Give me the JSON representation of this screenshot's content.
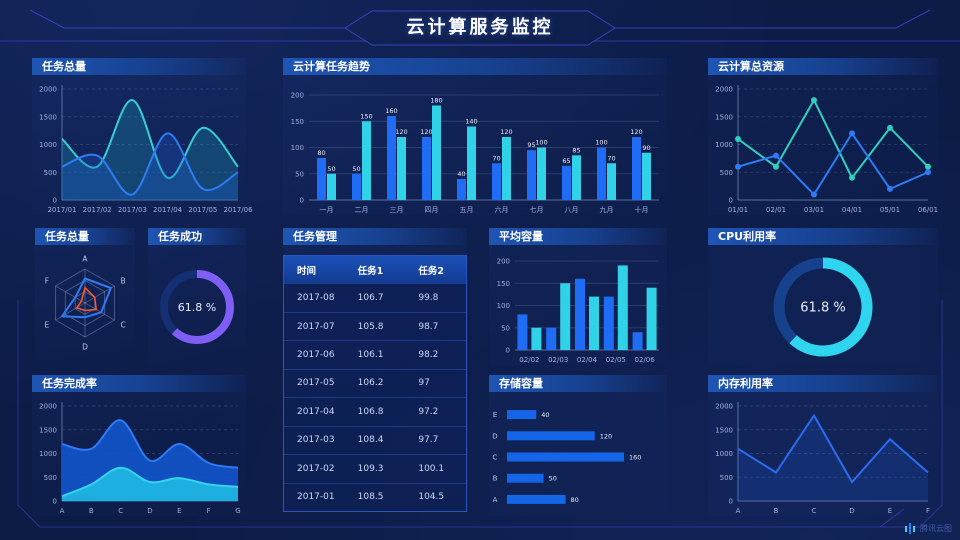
{
  "page_title": "云计算服务监控",
  "watermark": "腾讯云图",
  "colors": {
    "background": "#0d1c47",
    "accent_blue": "#1f6cf5",
    "accent_cyan": "#30d2e8",
    "accent_purple": "#7e5ef5",
    "accent_orange": "#f25a33"
  },
  "chart_data": [
    {
      "id": "task-total-trend",
      "type": "area",
      "title": "任务总量",
      "x": [
        "2017/01",
        "2017/02",
        "2017/03",
        "2017/04",
        "2017/05",
        "2017/06"
      ],
      "ylim": [
        0,
        2000
      ],
      "yticks": [
        0,
        500,
        1000,
        1500,
        2000
      ],
      "series": [
        {
          "name": "series1",
          "color": "#35cfd4",
          "fill": "#18a0c0",
          "fill_opacity": 0.28,
          "values": [
            1100,
            600,
            1800,
            400,
            1300,
            600
          ]
        },
        {
          "name": "series2",
          "color": "#2e7bf5",
          "fill": "#1d5ad0",
          "fill_opacity": 0.3,
          "values": [
            600,
            800,
            100,
            1200,
            200,
            500
          ]
        }
      ]
    },
    {
      "id": "cloud-task-trend",
      "type": "bar",
      "title": "云计算任务趋势",
      "categories": [
        "一月",
        "二月",
        "三月",
        "四月",
        "五月",
        "六月",
        "七月",
        "八月",
        "九月",
        "十月"
      ],
      "ylim": [
        0,
        200
      ],
      "yticks": [
        0,
        50,
        100,
        150,
        200
      ],
      "series": [
        {
          "name": "series1",
          "color": "#1f6cf5",
          "values": [
            80,
            50,
            160,
            120,
            40,
            70,
            95,
            65,
            100,
            120
          ]
        },
        {
          "name": "series2",
          "color": "#30d2e8",
          "values": [
            50,
            150,
            120,
            180,
            140,
            120,
            100,
            85,
            70,
            90
          ]
        }
      ]
    },
    {
      "id": "cloud-total-resource",
      "type": "line",
      "title": "云计算总资源",
      "x": [
        "01/01",
        "02/01",
        "03/01",
        "04/01",
        "05/01",
        "06/01"
      ],
      "ylim": [
        0,
        2000
      ],
      "yticks": [
        0,
        500,
        1000,
        1500,
        2000
      ],
      "series": [
        {
          "name": "series1",
          "color": "#2fd0c0",
          "values": [
            1100,
            600,
            1800,
            400,
            1300,
            600
          ]
        },
        {
          "name": "series2",
          "color": "#2e7bf5",
          "values": [
            600,
            800,
            100,
            1200,
            200,
            500
          ]
        }
      ]
    },
    {
      "id": "task-total-radar",
      "type": "radar",
      "title": "任务总量",
      "axes": [
        "A",
        "B",
        "C",
        "D",
        "E",
        "F"
      ],
      "max": 100,
      "series": [
        {
          "name": "blue",
          "color": "#2e7bf5",
          "values": [
            72,
            88,
            55,
            42,
            78,
            33
          ]
        },
        {
          "name": "orange",
          "color": "#f25a33",
          "values": [
            45,
            33,
            38,
            22,
            28,
            12
          ]
        }
      ]
    },
    {
      "id": "task-success",
      "type": "donut",
      "title": "任务成功",
      "value": 61.8,
      "label": "61.8 %",
      "color": "#7e5ef5",
      "track": "#152f74"
    },
    {
      "id": "task-management",
      "type": "table",
      "title": "任务管理",
      "columns": [
        "时间",
        "任务1",
        "任务2"
      ],
      "rows": [
        [
          "2017-08",
          "106.7",
          "99.8"
        ],
        [
          "2017-07",
          "105.8",
          "98.7"
        ],
        [
          "2017-06",
          "106.1",
          "98.2"
        ],
        [
          "2017-05",
          "106.2",
          "97"
        ],
        [
          "2017-04",
          "106.8",
          "97.2"
        ],
        [
          "2017-03",
          "108.4",
          "97.7"
        ],
        [
          "2017-02",
          "109.3",
          "100.1"
        ],
        [
          "2017-01",
          "108.5",
          "104.5"
        ]
      ]
    },
    {
      "id": "average-capacity",
      "type": "bar",
      "title": "平均容量",
      "categories": [
        "02/02",
        "02/03",
        "02/04",
        "02/05",
        "02/06"
      ],
      "ylim": [
        0,
        200
      ],
      "yticks": [
        0,
        50,
        100,
        150,
        200
      ],
      "series": [
        {
          "name": "series1",
          "color": "#1f6cf5",
          "values": [
            80,
            50,
            160,
            120,
            40
          ]
        },
        {
          "name": "series2",
          "color": "#30d2e8",
          "values": [
            50,
            150,
            120,
            190,
            140
          ]
        }
      ]
    },
    {
      "id": "cpu-utilization",
      "type": "donut",
      "title": "CPU利用率",
      "value": 61.8,
      "label": "61.8 %",
      "color": "#2fd4ee",
      "track": "#16418c"
    },
    {
      "id": "task-completion-rate",
      "type": "area",
      "title": "任务完成率",
      "x": [
        "A",
        "B",
        "C",
        "D",
        "E",
        "F",
        "G"
      ],
      "ylim": [
        0,
        2000
      ],
      "yticks": [
        0,
        500,
        1000,
        1500,
        2000
      ],
      "series": [
        {
          "name": "blue",
          "color": "#2e7bf5",
          "fill": "#1254cc",
          "fill_opacity": 0.9,
          "values": [
            1200,
            1100,
            1700,
            850,
            1200,
            800,
            700
          ]
        },
        {
          "name": "cyan",
          "color": "#35d4ec",
          "fill": "#1db4e2",
          "fill_opacity": 0.95,
          "values": [
            100,
            350,
            700,
            400,
            480,
            350,
            300
          ]
        }
      ]
    },
    {
      "id": "storage-capacity",
      "type": "hbar",
      "title": "存储容量",
      "categories": [
        "E",
        "D",
        "C",
        "B",
        "A"
      ],
      "values": [
        40,
        120,
        160,
        50,
        80
      ],
      "xmax": 175,
      "color": "#1565e8"
    },
    {
      "id": "memory-utilization",
      "type": "line",
      "title": "内存利用率",
      "x": [
        "A",
        "B",
        "C",
        "D",
        "E",
        "F"
      ],
      "ylim": [
        0,
        2000
      ],
      "yticks": [
        0,
        500,
        1000,
        1500,
        2000
      ],
      "series": [
        {
          "name": "series1",
          "color": "#2b6cf2",
          "fill": "#1d55c8",
          "fill_opacity": 0.22,
          "values": [
            1100,
            600,
            1800,
            400,
            1300,
            600
          ]
        }
      ]
    }
  ]
}
